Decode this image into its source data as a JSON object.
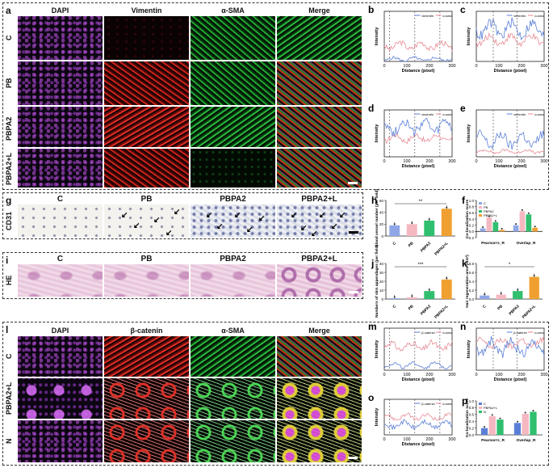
{
  "panels": {
    "a": {
      "letter": "a",
      "cols": [
        "DAPI",
        "Vimentin",
        "α-SMA",
        "Merge"
      ],
      "rows": [
        "C",
        "PB",
        "PBPA2",
        "PBPA2+L"
      ]
    },
    "g": {
      "letter": "g",
      "row": "CD31",
      "cols": [
        "C",
        "PB",
        "PBPA2",
        "PBPA2+L"
      ]
    },
    "i": {
      "letter": "i",
      "row": "HE",
      "cols": [
        "C",
        "PB",
        "PBPA2",
        "PBPA2+L"
      ]
    },
    "l": {
      "letter": "l",
      "cols": [
        "DAPI",
        "β-catenin",
        "α-SMA",
        "Merge"
      ],
      "rows": [
        "C",
        "PBPA2+L",
        "N"
      ]
    }
  },
  "line_plot_common": {
    "xlabel": "Distance (pixel)",
    "ylabel": "Intensity",
    "xticks": [
      "0",
      "100",
      "200",
      "300"
    ]
  },
  "line_plots": [
    {
      "letter": "b",
      "legend": [
        "vimentin",
        "α-sma"
      ]
    },
    {
      "letter": "c",
      "legend": [
        "vimentin",
        "α-sma"
      ]
    },
    {
      "letter": "d",
      "legend": [
        "vimentin",
        "α-sma"
      ]
    },
    {
      "letter": "e",
      "legend": [
        "vimentin",
        "α-sma"
      ]
    },
    {
      "letter": "m",
      "legend": [
        "β-catenin",
        "α-sma"
      ]
    },
    {
      "letter": "n",
      "legend": [
        "β-catenin",
        "α-sma"
      ]
    },
    {
      "letter": "o",
      "legend": [
        "β-catenin",
        "α-sma"
      ]
    }
  ],
  "colors": {
    "blue": "#5b7fd6",
    "pink": "#e88a94",
    "green": "#2fbf6e",
    "orange": "#f0a030",
    "lightpink": "#f5b7c0",
    "lightblue": "#8fa7e6"
  },
  "chart_data": [
    {
      "letter": "h",
      "type": "bar",
      "ylabel": "Blood vessel number (per field)",
      "categories": [
        "C",
        "PB",
        "PBPA2",
        "PBPA2+L"
      ],
      "values": [
        18,
        20,
        26,
        46
      ],
      "ylim": [
        0,
        60
      ],
      "yticks": [
        "0",
        "20",
        "40",
        "60"
      ],
      "significance": "**"
    },
    {
      "letter": "f",
      "type": "bar",
      "ylabel": "Co-localization score",
      "categories": [
        "Pearson's_R",
        "Overlap_R"
      ],
      "legend": [
        "C",
        "PB",
        "PBPA2",
        "PBPA2+L"
      ],
      "series": [
        {
          "name": "C",
          "values": [
            0.1,
            0.2
          ]
        },
        {
          "name": "PB",
          "values": [
            0.45,
            0.65
          ]
        },
        {
          "name": "PBPA2",
          "values": [
            0.3,
            0.55
          ]
        },
        {
          "name": "PBPA2+L",
          "values": [
            0.05,
            0.12
          ]
        }
      ],
      "ylim": [
        -0.2,
        1.0
      ],
      "yticks": [
        "-0.2",
        "0.0",
        "0.2",
        "0.4",
        "0.6",
        "0.8",
        "1.0"
      ]
    },
    {
      "letter": "j",
      "type": "bar",
      "ylabel": "Numbers of skin appendages (per field)",
      "categories": [
        "C",
        "PB",
        "PBPA2",
        "PBPA2+L"
      ],
      "values": [
        1,
        2,
        9,
        22
      ],
      "ylim": [
        0,
        40
      ],
      "yticks": [
        "0",
        "10",
        "20",
        "30",
        "40"
      ],
      "significance": "***"
    },
    {
      "letter": "k",
      "type": "bar",
      "ylabel": "Hair regeneration area (mm²)",
      "categories": [
        "C",
        "PB",
        "PBPA2",
        "PBPA2+L"
      ],
      "values": [
        0.08,
        0.1,
        0.18,
        0.5
      ],
      "ylim": [
        0,
        0.8
      ],
      "yticks": [
        "0.0",
        "0.2",
        "0.4",
        "0.6",
        "0.8"
      ],
      "significance": "*"
    },
    {
      "letter": "p",
      "type": "bar",
      "ylabel": "Co-localization score",
      "categories": [
        "Pearson's_R",
        "Overlap_R"
      ],
      "legend": [
        "C",
        "PBPA2+L",
        "N"
      ],
      "series": [
        {
          "name": "C",
          "values": [
            0.2,
            0.35
          ]
        },
        {
          "name": "PBPA2+L",
          "values": [
            0.55,
            0.62
          ]
        },
        {
          "name": "N",
          "values": [
            0.45,
            0.68
          ]
        }
      ],
      "ylim": [
        0,
        1.0
      ],
      "yticks": [
        "0.0",
        "0.2",
        "0.4",
        "0.6",
        "0.8",
        "1.0"
      ]
    }
  ]
}
